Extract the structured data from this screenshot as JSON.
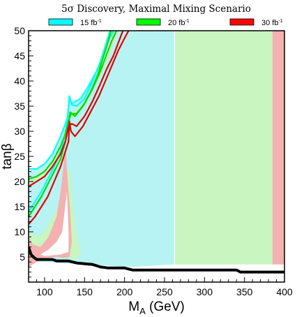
{
  "chart_data": {
    "type": "contour",
    "title": "5σ Discovery, Maximal Mixing Scenario",
    "xlabel": "M_A (GeV)",
    "xlabel_main": "M",
    "xlabel_sub": "A",
    "xlabel_unit": " (GeV)",
    "ylabel": "tanβ",
    "xlim": [
      80,
      400
    ],
    "ylim": [
      0,
      50
    ],
    "xticks": [
      100,
      150,
      200,
      250,
      300,
      350,
      400
    ],
    "yticks": [
      5,
      10,
      15,
      20,
      25,
      30,
      35,
      40,
      45,
      50
    ],
    "grid": false,
    "legend": {
      "placement": "top",
      "entries": [
        {
          "label": "15 fb",
          "sup": "-1",
          "color": "#00ffff"
        },
        {
          "label": "20 fb",
          "sup": "-1",
          "color": "#00ff00"
        },
        {
          "label": "30 fb",
          "sup": "-1",
          "color": "#ff0000"
        }
      ]
    },
    "colors": {
      "cyan_region": "#b8f3f3",
      "green_region": "#c8f5c0",
      "red_region": "#f5b0b0",
      "cyan_line": "#00ffff",
      "green_line": "#00dd00",
      "red_line": "#dd0000",
      "lep_bound": "#000000"
    },
    "regions": {
      "cyan": [
        [
          80,
          4
        ],
        [
          80,
          22
        ],
        [
          90,
          22.5
        ],
        [
          100,
          23.5
        ],
        [
          110,
          25.5
        ],
        [
          120,
          29
        ],
        [
          127,
          32
        ],
        [
          130,
          36.5
        ],
        [
          135,
          35.5
        ],
        [
          145,
          36.5
        ],
        [
          160,
          40
        ],
        [
          175,
          44
        ],
        [
          185,
          48
        ],
        [
          192,
          50
        ],
        [
          262,
          50
        ],
        [
          262,
          3.5
        ],
        [
          210,
          3
        ],
        [
          150,
          3.5
        ],
        [
          100,
          4
        ]
      ],
      "green_band": [
        [
          80,
          20.5
        ],
        [
          90,
          21
        ],
        [
          100,
          22
        ],
        [
          110,
          24
        ],
        [
          120,
          27.5
        ],
        [
          128,
          31
        ],
        [
          131,
          33.5
        ],
        [
          135,
          33.5
        ],
        [
          145,
          35
        ],
        [
          160,
          38.5
        ],
        [
          175,
          42.5
        ],
        [
          185,
          47
        ],
        [
          192,
          50
        ],
        [
          186,
          50
        ],
        [
          180,
          46
        ],
        [
          170,
          42
        ],
        [
          158,
          38
        ],
        [
          145,
          34.5
        ],
        [
          138,
          33
        ],
        [
          131,
          32.5
        ],
        [
          128,
          30
        ],
        [
          120,
          26
        ],
        [
          110,
          23
        ],
        [
          100,
          21
        ],
        [
          90,
          20
        ],
        [
          80,
          19.5
        ]
      ],
      "green_right": [
        [
          263,
          50
        ],
        [
          385,
          50
        ],
        [
          385,
          3.5
        ],
        [
          263,
          3.5
        ]
      ],
      "red_right": [
        [
          385,
          50
        ],
        [
          400,
          50
        ],
        [
          400,
          3.5
        ],
        [
          385,
          3.5
        ]
      ],
      "green_low": [
        [
          80,
          10
        ],
        [
          90,
          9
        ],
        [
          100,
          10
        ],
        [
          110,
          13
        ],
        [
          120,
          16
        ],
        [
          128,
          22
        ],
        [
          132,
          22
        ],
        [
          135,
          16
        ],
        [
          140,
          10
        ],
        [
          145,
          6
        ],
        [
          140,
          4.5
        ],
        [
          120,
          5
        ],
        [
          100,
          5.5
        ],
        [
          80,
          6
        ]
      ],
      "pink_low": [
        [
          80,
          5
        ],
        [
          80,
          9
        ],
        [
          85,
          7.5
        ],
        [
          95,
          7
        ],
        [
          105,
          9
        ],
        [
          115,
          13
        ],
        [
          120,
          18
        ],
        [
          123,
          22
        ],
        [
          126,
          27
        ],
        [
          129,
          20
        ],
        [
          132,
          14
        ],
        [
          134,
          8
        ],
        [
          131,
          5
        ],
        [
          125,
          4.8
        ],
        [
          115,
          5
        ],
        [
          100,
          4.8
        ],
        [
          90,
          4
        ],
        [
          80,
          3
        ]
      ],
      "white_low": [
        [
          95,
          5.5
        ],
        [
          105,
          6.5
        ],
        [
          115,
          8
        ],
        [
          122,
          10
        ],
        [
          128,
          18
        ],
        [
          130,
          10
        ],
        [
          130,
          6
        ],
        [
          120,
          5.5
        ],
        [
          110,
          5.3
        ],
        [
          100,
          5.2
        ]
      ]
    },
    "series": [
      {
        "name": "15 fb-1",
        "color": "#00ffff",
        "points": [
          [
            80,
            14
          ],
          [
            88,
            16
          ],
          [
            96,
            18
          ],
          [
            104,
            20.5
          ],
          [
            112,
            23
          ],
          [
            120,
            26
          ],
          [
            126,
            29.5
          ],
          [
            129,
            33
          ],
          [
            131,
            37
          ],
          [
            134,
            35.3
          ],
          [
            140,
            35
          ],
          [
            150,
            36.5
          ],
          [
            160,
            40
          ],
          [
            168,
            43
          ],
          [
            174,
            46
          ],
          [
            180,
            49
          ],
          [
            182,
            50
          ]
        ]
      },
      {
        "name": "15 fb-1",
        "color": "#00ffff",
        "points": [
          [
            80,
            22.5
          ],
          [
            90,
            22.5
          ],
          [
            100,
            23.5
          ],
          [
            110,
            25.5
          ],
          [
            120,
            29
          ],
          [
            126,
            31.5
          ],
          [
            129,
            33
          ],
          [
            131,
            37
          ],
          [
            134,
            35.5
          ],
          [
            145,
            36.5
          ],
          [
            155,
            39
          ],
          [
            165,
            42
          ],
          [
            173,
            45
          ],
          [
            180,
            48
          ],
          [
            186,
            50
          ]
        ]
      },
      {
        "name": "20 fb-1",
        "color": "#00dd00",
        "points": [
          [
            80,
            13
          ],
          [
            88,
            15
          ],
          [
            96,
            17
          ],
          [
            104,
            19.5
          ],
          [
            112,
            22
          ],
          [
            120,
            24.5
          ],
          [
            126,
            28
          ],
          [
            130,
            31.5
          ],
          [
            132,
            33.8
          ],
          [
            138,
            33
          ],
          [
            148,
            35
          ],
          [
            158,
            38
          ],
          [
            166,
            41
          ],
          [
            172,
            44
          ],
          [
            178,
            47
          ],
          [
            183,
            50
          ]
        ]
      },
      {
        "name": "20 fb-1",
        "color": "#00dd00",
        "points": [
          [
            80,
            20.5
          ],
          [
            90,
            21
          ],
          [
            100,
            22
          ],
          [
            110,
            24
          ],
          [
            120,
            27
          ],
          [
            126,
            29.5
          ],
          [
            130,
            32
          ],
          [
            133,
            33.5
          ],
          [
            140,
            33.5
          ],
          [
            150,
            35.5
          ],
          [
            160,
            38.5
          ],
          [
            170,
            42
          ],
          [
            178,
            45.5
          ],
          [
            184,
            48
          ],
          [
            190,
            50
          ]
        ]
      },
      {
        "name": "30 fb-1",
        "color": "#dd0000",
        "points": [
          [
            80,
            11.5
          ],
          [
            88,
            13
          ],
          [
            96,
            15
          ],
          [
            104,
            17
          ],
          [
            112,
            20
          ],
          [
            120,
            23
          ],
          [
            126,
            26
          ],
          [
            130,
            28
          ],
          [
            131,
            32
          ],
          [
            133,
            30
          ],
          [
            138,
            29
          ],
          [
            148,
            31
          ],
          [
            158,
            34
          ],
          [
            168,
            37
          ],
          [
            176,
            40
          ],
          [
            184,
            43
          ],
          [
            192,
            46
          ],
          [
            200,
            48.5
          ],
          [
            205,
            50
          ]
        ]
      },
      {
        "name": "30 fb-1",
        "color": "#dd0000",
        "points": [
          [
            80,
            19
          ],
          [
            90,
            20
          ],
          [
            100,
            21
          ],
          [
            110,
            23
          ],
          [
            120,
            25.5
          ],
          [
            126,
            28
          ],
          [
            130,
            31
          ],
          [
            134,
            31.5
          ],
          [
            140,
            31
          ],
          [
            150,
            33
          ],
          [
            160,
            36
          ],
          [
            170,
            39.5
          ],
          [
            178,
            42.5
          ],
          [
            186,
            45
          ],
          [
            192,
            47.5
          ],
          [
            198,
            50
          ]
        ]
      }
    ],
    "lep_bound": [
      [
        80,
        7
      ],
      [
        83,
        5.5
      ],
      [
        86,
        5
      ],
      [
        90,
        4.5
      ],
      [
        110,
        4.5
      ],
      [
        115,
        4.2
      ],
      [
        130,
        4.2
      ],
      [
        140,
        3.8
      ],
      [
        160,
        3.5
      ],
      [
        170,
        3
      ],
      [
        180,
        2.8
      ],
      [
        200,
        2.8
      ],
      [
        210,
        2.4
      ],
      [
        340,
        2.4
      ],
      [
        345,
        2.0
      ],
      [
        400,
        2.0
      ]
    ]
  }
}
